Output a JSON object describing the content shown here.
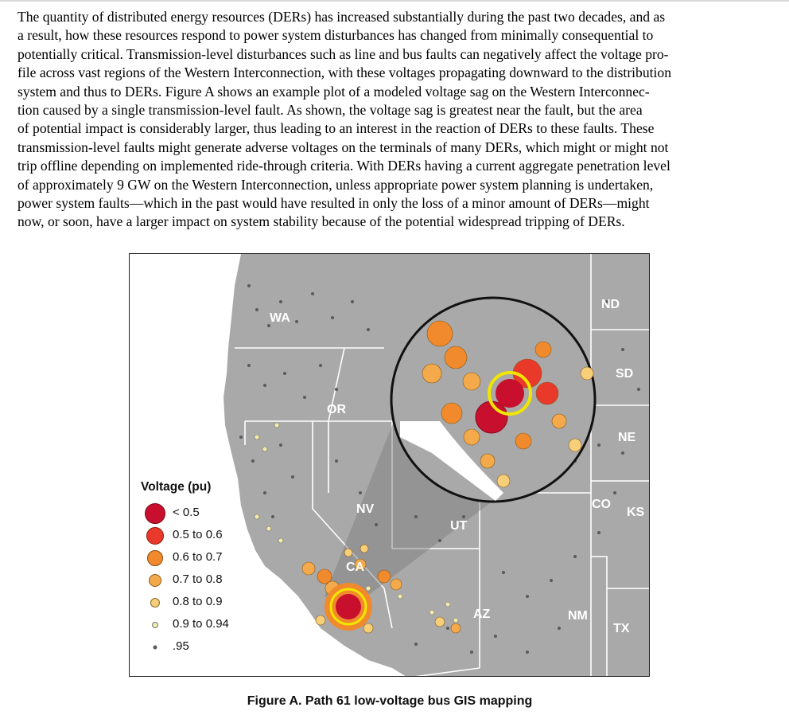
{
  "body_text": {
    "lines": [
      "The quantity of distributed energy resources (DERs) has increased substantially during the past two decades, and as",
      "a result, how these resources respond to power system disturbances has changed from minimally consequential to",
      "potentially critical. Transmission-level disturbances such as line and bus faults can negatively affect the voltage pro-",
      "file across vast regions of the Western Interconnection, with these voltages propagating downward to the distribution",
      "system and thus to DERs. Figure A shows an example plot of a modeled voltage sag on the Western Interconnec-",
      "tion caused by a single transmission-level fault. As shown, the voltage sag is greatest near the fault, but the area",
      "of potential impact is considerably larger, thus leading to an interest in the reaction of DERs to these faults. These",
      "transmission-level faults might generate adverse voltages on the terminals of many DERs, which might or might not",
      "trip offline depending on implemented ride-through criteria. With DERs having a current aggregate penetration level",
      "of approximately 9 GW on the Western Interconnection, unless appropriate power system planning is undertaken,",
      "power system faults—which in the past would have resulted in only the loss of a minor amount of DERs—might",
      "now, or soon, have a larger impact on system stability because of the potential widespread tripping of DERs."
    ]
  },
  "figure": {
    "caption": "Figure A. Path 61 low-voltage bus GIS mapping",
    "state_labels": {
      "wa": "WA",
      "or": "OR",
      "nv": "NV",
      "ca": "CA",
      "ut": "UT",
      "az": "AZ",
      "nd": "ND",
      "sd": "SD",
      "ne": "NE",
      "co": "CO",
      "ks": "KS",
      "nm": "NM",
      "tx": "TX"
    },
    "legend": {
      "title": "Voltage (pu)",
      "items": [
        {
          "label": "< 0.5",
          "color": "#c8102e"
        },
        {
          "label": "0.5 to 0.6",
          "color": "#e8392a"
        },
        {
          "label": "0.6 to 0.7",
          "color": "#f08a2c"
        },
        {
          "label": "0.7 to 0.8",
          "color": "#f4a94a"
        },
        {
          "label": "0.8 to 0.9",
          "color": "#f7cf78"
        },
        {
          "label": "0.9 to 0.94",
          "color": "#f3eaa8"
        },
        {
          "label": ".95",
          "color": "#5a5a5a"
        }
      ]
    },
    "colors": {
      "land": "#a9a9a9",
      "ocean_and_outside": "#ffffff",
      "border": "#ffffff",
      "fault_ring": "#f2e600"
    }
  }
}
